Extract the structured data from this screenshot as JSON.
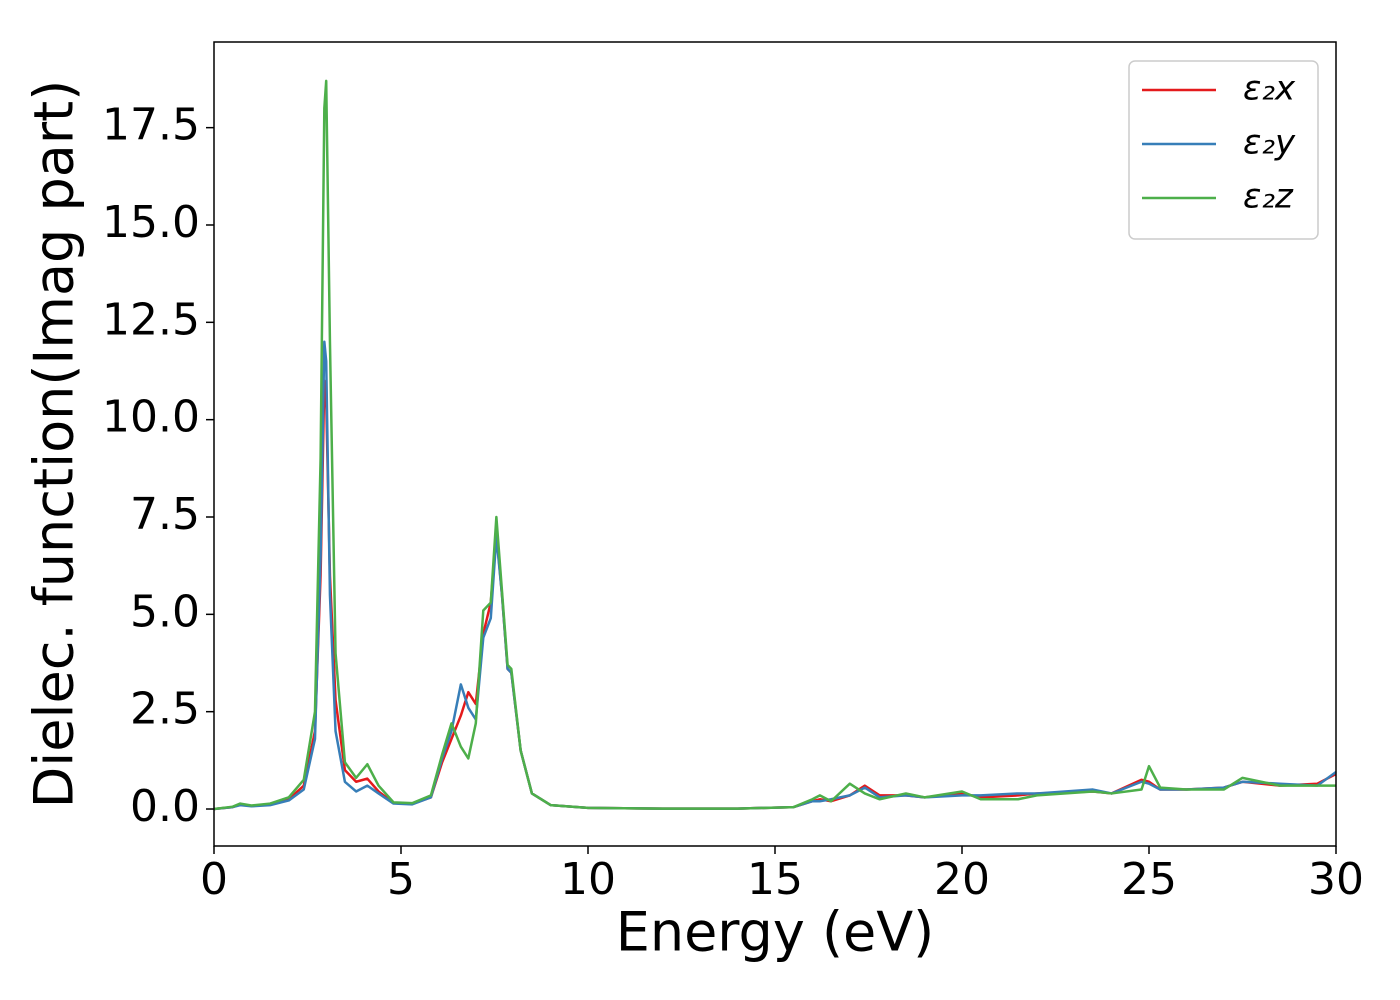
{
  "chart_data": {
    "type": "line",
    "x_label": "Energy (eV)",
    "y_label": "Dielec. function(Imag part)",
    "x": [
      0,
      0.5,
      0.7,
      1,
      1.5,
      2,
      2.4,
      2.7,
      2.85,
      2.95,
      3.0,
      3.1,
      3.25,
      3.5,
      3.8,
      4.1,
      4.4,
      4.8,
      5.3,
      5.8,
      6.1,
      6.35,
      6.6,
      6.8,
      7.0,
      7.2,
      7.4,
      7.55,
      7.7,
      7.85,
      7.95,
      8.2,
      8.5,
      9,
      10,
      12,
      14,
      15.5,
      16.0,
      16.2,
      16.5,
      17,
      17.4,
      17.8,
      18.5,
      19,
      20,
      20.5,
      21.5,
      22,
      23.5,
      24,
      24.8,
      25,
      25.3,
      26,
      27,
      27.5,
      28.5,
      29.5,
      30
    ],
    "series": [
      {
        "name": "ε₂x",
        "color": "#e41a1c",
        "values": [
          0,
          0.05,
          0.12,
          0.08,
          0.12,
          0.25,
          0.6,
          2.0,
          6,
          11.0,
          10.5,
          6,
          2.8,
          1.0,
          0.7,
          0.78,
          0.45,
          0.15,
          0.13,
          0.3,
          1.2,
          1.8,
          2.4,
          3.0,
          2.7,
          4.5,
          5.3,
          7.1,
          5.5,
          3.6,
          3.5,
          1.5,
          0.4,
          0.1,
          0.03,
          0.01,
          0.01,
          0.05,
          0.2,
          0.25,
          0.2,
          0.35,
          0.6,
          0.35,
          0.35,
          0.3,
          0.4,
          0.3,
          0.35,
          0.4,
          0.45,
          0.4,
          0.75,
          0.7,
          0.5,
          0.5,
          0.55,
          0.7,
          0.6,
          0.65,
          0.9
        ]
      },
      {
        "name": "ε₂y",
        "color": "#377eb8",
        "values": [
          0,
          0.05,
          0.1,
          0.07,
          0.1,
          0.22,
          0.5,
          1.8,
          6.5,
          12.0,
          11.5,
          5.5,
          2.0,
          0.7,
          0.45,
          0.6,
          0.4,
          0.14,
          0.12,
          0.3,
          1.3,
          2.0,
          3.2,
          2.6,
          2.3,
          4.4,
          4.9,
          7.0,
          5.5,
          3.6,
          3.5,
          1.5,
          0.4,
          0.1,
          0.03,
          0.01,
          0.01,
          0.05,
          0.2,
          0.2,
          0.25,
          0.35,
          0.55,
          0.3,
          0.35,
          0.3,
          0.35,
          0.35,
          0.4,
          0.4,
          0.5,
          0.4,
          0.7,
          0.65,
          0.5,
          0.5,
          0.55,
          0.7,
          0.65,
          0.6,
          0.95
        ]
      },
      {
        "name": "ε₂z",
        "color": "#4daf4a",
        "values": [
          0,
          0.06,
          0.14,
          0.09,
          0.14,
          0.3,
          0.75,
          2.5,
          9,
          18.0,
          18.7,
          12,
          4,
          1.2,
          0.8,
          1.15,
          0.6,
          0.17,
          0.15,
          0.35,
          1.4,
          2.2,
          1.6,
          1.3,
          2.2,
          5.1,
          5.3,
          7.5,
          5.6,
          3.7,
          3.6,
          1.5,
          0.4,
          0.1,
          0.03,
          0.01,
          0.01,
          0.05,
          0.25,
          0.35,
          0.2,
          0.65,
          0.4,
          0.25,
          0.4,
          0.3,
          0.45,
          0.25,
          0.25,
          0.35,
          0.45,
          0.4,
          0.5,
          1.1,
          0.55,
          0.5,
          0.5,
          0.8,
          0.6,
          0.6,
          0.6
        ]
      }
    ],
    "xlim": [
      0,
      30
    ],
    "ylim": [
      -0.95,
      19.7
    ],
    "xticks": [
      0,
      5,
      10,
      15,
      20,
      25,
      30
    ],
    "yticks": [
      {
        "value": 0,
        "label": "0.0"
      },
      2.5,
      {
        "value": 5,
        "label": "5.0"
      },
      7.5,
      {
        "value": 10,
        "label": "10.0"
      },
      12.5,
      {
        "value": 15,
        "label": "15.0"
      },
      17.5
    ],
    "legend": "upper right",
    "grid": false
  }
}
